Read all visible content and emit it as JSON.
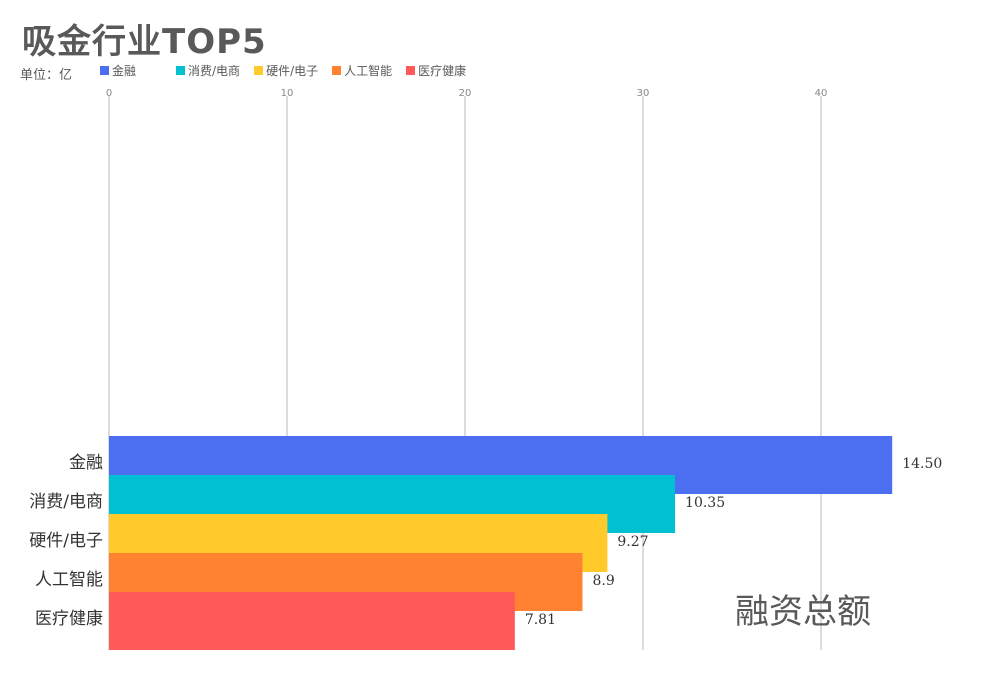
{
  "chart_data": {
    "type": "bar",
    "orientation": "horizontal",
    "title": "吸金行业TOP5",
    "unit_label": "单位：亿",
    "categories": [
      "金融",
      "消费/电商",
      "硬件/电子",
      "人工智能",
      "医疗健康"
    ],
    "values": [
      14.5,
      10.35,
      9.27,
      8.9,
      7.81
    ],
    "value_labels": [
      "14.50",
      "10.35",
      "9.27",
      "8.9",
      "7.81"
    ],
    "bar_ends": [
      44,
      31.8,
      28,
      26.6,
      22.8
    ],
    "colors": [
      "#4C6EF0",
      "#00C0D2",
      "#FFCA2A",
      "#FF8230",
      "#FF5A5A"
    ],
    "legend": [
      "金融",
      "消费/电商",
      "硬件/电子",
      "人工智能",
      "医疗健康"
    ],
    "legend_position": "top",
    "x_ticks": [
      "0",
      "10",
      "20",
      "30",
      "40"
    ],
    "xlim": [
      0,
      44
    ],
    "grid": true,
    "annotation": "融资总额"
  }
}
